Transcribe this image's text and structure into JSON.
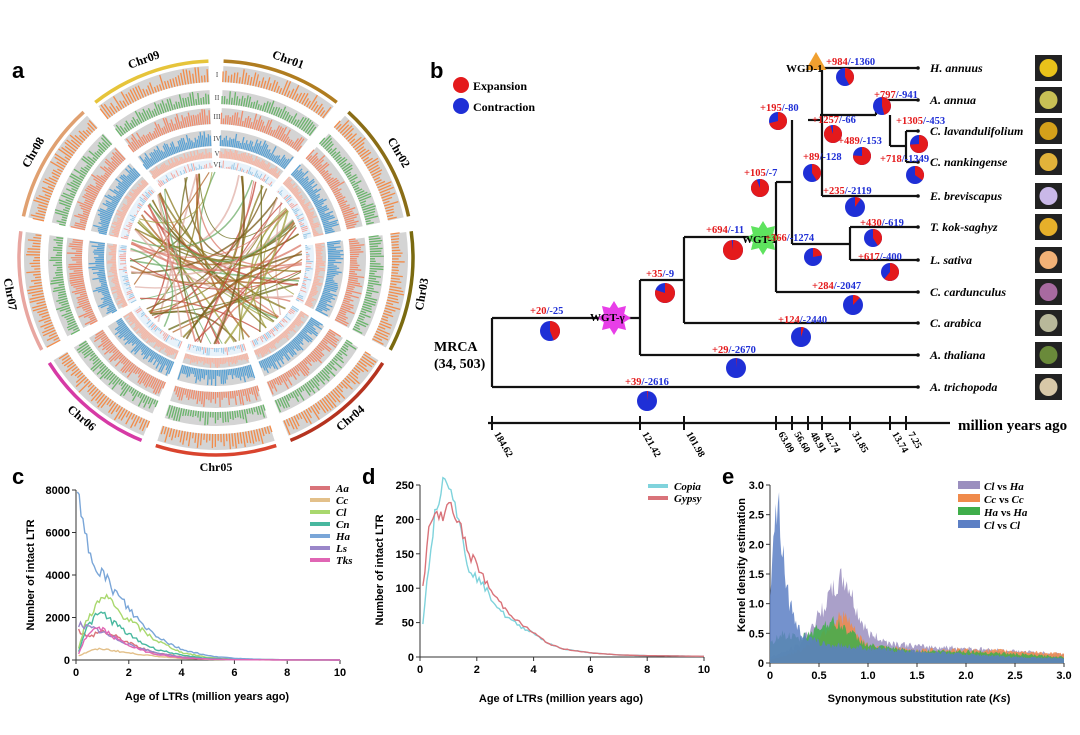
{
  "panels": {
    "a": {
      "letter": "a",
      "chromosomes": [
        "Chr01",
        "Chr02",
        "Chr03",
        "Chr04",
        "Chr05",
        "Chr06",
        "Chr07",
        "Chr08",
        "Chr09"
      ],
      "ring_labels": [
        "I",
        "II",
        "III",
        "IV",
        "V",
        "VI"
      ],
      "chrom_colors": [
        "#b07d20",
        "#8a6d16",
        "#7a6a10",
        "#b5331f",
        "#d9442e",
        "#d63aa5",
        "#e8a6a0",
        "#e0a070",
        "#e6c43a"
      ],
      "ring_colors": [
        "#f28c4a",
        "#6ab46b",
        "#f08c6c",
        "#5aa2d4",
        "#f6b7a6",
        "#9cc9e6"
      ]
    },
    "b": {
      "letter": "b",
      "legend": [
        {
          "label": "Expansion",
          "color": "#e41a1c"
        },
        {
          "label": "Contraction",
          "color": "#1f2fd6"
        }
      ],
      "root_label_line1": "MRCA",
      "root_label_line2": "(34, 503)",
      "axis_unit": "million years ago",
      "axis_ticks": [
        "184.62",
        "121.42",
        "101.98",
        "63.09",
        "56.60",
        "48.91",
        "42.74",
        "31.85",
        "13.74",
        "7.25"
      ],
      "taxa": [
        "H. annuus",
        "A. annua",
        "C. lavandulifolium",
        "C. nankingense",
        "E. breviscapus",
        "T. kok-saghyz",
        "L. sativa",
        "C. cardunculus",
        "C. arabica",
        "A. thaliana",
        "A. trichopoda"
      ],
      "events": [
        {
          "label": "WGD-1",
          "color": "#f0a030"
        },
        {
          "label": "WGT-1",
          "color": "#5ee35e"
        },
        {
          "label": "WGT-γ",
          "color": "#e83ee8"
        }
      ],
      "nodes": [
        {
          "plus": "+984",
          "minus": "-1360",
          "expansion_fraction": 0.42
        },
        {
          "plus": "+797",
          "minus": "-941",
          "expansion_fraction": 0.46
        },
        {
          "plus": "+1257",
          "minus": "-66",
          "expansion_fraction": 0.95
        },
        {
          "plus": "+1305",
          "minus": "-453",
          "expansion_fraction": 0.74
        },
        {
          "plus": "+489",
          "minus": "-153",
          "expansion_fraction": 0.76
        },
        {
          "plus": "+718",
          "minus": "-1349",
          "expansion_fraction": 0.35
        },
        {
          "plus": "+195",
          "minus": "-80",
          "expansion_fraction": 0.71
        },
        {
          "plus": "+89",
          "minus": "-128",
          "expansion_fraction": 0.41
        },
        {
          "plus": "+105",
          "minus": "-7",
          "expansion_fraction": 0.94
        },
        {
          "plus": "+235",
          "minus": "-2119",
          "expansion_fraction": 0.1
        },
        {
          "plus": "+430",
          "minus": "-619",
          "expansion_fraction": 0.41
        },
        {
          "plus": "+694",
          "minus": "-11",
          "expansion_fraction": 0.98
        },
        {
          "plus": "+366",
          "minus": "-1274",
          "expansion_fraction": 0.22
        },
        {
          "plus": "+617",
          "minus": "-400",
          "expansion_fraction": 0.61
        },
        {
          "plus": "+284",
          "minus": "-2047",
          "expansion_fraction": 0.12
        },
        {
          "plus": "+35",
          "minus": "-9",
          "expansion_fraction": 0.8
        },
        {
          "plus": "+124",
          "minus": "-2440",
          "expansion_fraction": 0.05
        },
        {
          "plus": "+20",
          "minus": "-25",
          "expansion_fraction": 0.44
        },
        {
          "plus": "+29",
          "minus": "-2670",
          "expansion_fraction": 0.01
        },
        {
          "plus": "+39",
          "minus": "-2616",
          "expansion_fraction": 0.015
        }
      ]
    },
    "c": {
      "letter": "c",
      "ylabel": "Number of intact LTR",
      "xlabel": "Age of LTRs (million years ago)"
    },
    "d": {
      "letter": "d",
      "ylabel": "Number of intact LTR",
      "xlabel": "Age of LTRs (million years ago)"
    },
    "e": {
      "letter": "e",
      "ylabel": "Kernel density estimation",
      "xlabel_main": "Synonymous substitution rate (",
      "xlabel_italic": "Ks",
      "xlabel_end": ")"
    }
  },
  "chart_data": [
    {
      "type": "line",
      "panel": "c",
      "xlabel": "Age of LTRs (million years ago)",
      "ylabel": "Number of intact LTR",
      "xlim": [
        0,
        10
      ],
      "ylim": [
        0,
        8000
      ],
      "xticks": [
        0,
        2,
        4,
        6,
        8,
        10
      ],
      "yticks": [
        0,
        2000,
        4000,
        6000,
        8000
      ],
      "legend_position": "top-right",
      "series": [
        {
          "name": "Aa",
          "color": "#d9737a",
          "x": [
            0.1,
            0.3,
            0.5,
            0.8,
            1.0,
            1.5,
            2.0,
            2.5,
            3.0,
            4.0,
            5.0,
            6.0,
            8.0,
            10.0
          ],
          "y": [
            1400,
            1200,
            1050,
            1300,
            1350,
            1100,
            800,
            550,
            350,
            150,
            60,
            20,
            5,
            0
          ]
        },
        {
          "name": "Cc",
          "color": "#e3c08a",
          "x": [
            0.1,
            0.3,
            0.5,
            0.8,
            1.0,
            1.5,
            2.0,
            3.0,
            4.0,
            5.0,
            6.0,
            8.0,
            10.0
          ],
          "y": [
            200,
            300,
            420,
            500,
            520,
            430,
            330,
            180,
            80,
            30,
            10,
            3,
            0
          ]
        },
        {
          "name": "Cl",
          "color": "#a9d86e",
          "x": [
            0.1,
            0.3,
            0.5,
            0.8,
            1.0,
            1.3,
            1.6,
            2.0,
            2.5,
            3.0,
            4.0,
            5.0,
            6.0,
            8.0,
            10.0
          ],
          "y": [
            500,
            1500,
            2100,
            2600,
            2900,
            2800,
            2300,
            1900,
            1400,
            950,
            350,
            120,
            40,
            10,
            0
          ]
        },
        {
          "name": "Cn",
          "color": "#48b89f",
          "x": [
            0.1,
            0.3,
            0.5,
            0.8,
            1.0,
            1.3,
            1.6,
            2.0,
            2.5,
            3.0,
            4.0,
            5.0,
            6.0,
            8.0,
            10.0
          ],
          "y": [
            400,
            1200,
            1700,
            2100,
            2200,
            1900,
            1600,
            1200,
            800,
            520,
            220,
            80,
            30,
            5,
            0
          ]
        },
        {
          "name": "Ha",
          "color": "#7aa6d8",
          "x": [
            0.05,
            0.2,
            0.4,
            0.6,
            0.8,
            1.0,
            1.3,
            1.6,
            2.0,
            2.5,
            3.0,
            3.5,
            4.0,
            5.0,
            6.0,
            7.0,
            8.0,
            10.0
          ],
          "y": [
            7800,
            6600,
            5600,
            4900,
            4500,
            4100,
            3500,
            3000,
            2400,
            1700,
            1200,
            800,
            500,
            200,
            80,
            30,
            10,
            0
          ]
        },
        {
          "name": "Ls",
          "color": "#9a86c9",
          "x": [
            0.1,
            0.3,
            0.5,
            0.8,
            1.0,
            1.3,
            1.6,
            2.0,
            2.5,
            3.0,
            4.0,
            5.0,
            6.0,
            8.0,
            10.0
          ],
          "y": [
            1700,
            1600,
            1500,
            1400,
            1300,
            1100,
            950,
            750,
            520,
            350,
            130,
            50,
            15,
            3,
            0
          ]
        },
        {
          "name": "Tks",
          "color": "#e066b4",
          "x": [
            0.1,
            0.3,
            0.5,
            0.8,
            1.0,
            1.3,
            1.6,
            2.0,
            2.5,
            3.0,
            4.0,
            5.0,
            6.0,
            8.0,
            10.0
          ],
          "y": [
            300,
            900,
            1300,
            1500,
            1450,
            1200,
            950,
            700,
            450,
            280,
            100,
            40,
            15,
            3,
            0
          ]
        }
      ]
    },
    {
      "type": "line",
      "panel": "d",
      "xlabel": "Age of LTRs (million years ago)",
      "ylabel": "Number of intact LTR",
      "xlim": [
        0,
        10
      ],
      "ylim": [
        0,
        250
      ],
      "xticks": [
        0,
        2,
        4,
        6,
        8,
        10
      ],
      "yticks": [
        0,
        50,
        100,
        150,
        200,
        250
      ],
      "legend_position": "top-right",
      "series": [
        {
          "name": "Copia",
          "color": "#7fd3dc",
          "x": [
            0.1,
            0.3,
            0.5,
            0.7,
            0.9,
            1.1,
            1.3,
            1.5,
            1.7,
            2.0,
            2.3,
            2.6,
            3.0,
            3.5,
            4.0,
            4.5,
            5.0,
            6.0,
            7.0,
            8.0,
            10.0
          ],
          "y": [
            50,
            130,
            200,
            240,
            268,
            250,
            210,
            170,
            130,
            115,
            100,
            80,
            60,
            45,
            35,
            20,
            12,
            6,
            3,
            2,
            1
          ]
        },
        {
          "name": "Gypsy",
          "color": "#d9737a",
          "x": [
            0.1,
            0.3,
            0.5,
            0.7,
            0.9,
            1.1,
            1.3,
            1.5,
            1.7,
            2.0,
            2.3,
            2.6,
            3.0,
            3.5,
            4.0,
            4.5,
            5.0,
            6.0,
            7.0,
            8.0,
            10.0
          ],
          "y": [
            100,
            180,
            210,
            200,
            215,
            225,
            200,
            180,
            150,
            135,
            110,
            90,
            70,
            50,
            35,
            20,
            12,
            6,
            3,
            2,
            1
          ]
        }
      ]
    },
    {
      "type": "area",
      "panel": "e",
      "xlabel": "Synonymous substitution rate (Ks)",
      "ylabel": "Kernel density estimation",
      "xlim": [
        0,
        3.0
      ],
      "ylim": [
        0,
        3.0
      ],
      "xticks": [
        0,
        0.5,
        1.0,
        1.5,
        2.0,
        2.5,
        3.0
      ],
      "yticks": [
        0,
        0.5,
        1.0,
        1.5,
        2.0,
        2.5,
        3.0
      ],
      "legend_position": "top-right",
      "series": [
        {
          "name": "Cl vs Ha",
          "color": "#9b8fbf",
          "x": [
            0,
            0.1,
            0.3,
            0.5,
            0.6,
            0.7,
            0.75,
            0.8,
            0.9,
            1.0,
            1.2,
            1.5,
            2.0,
            2.5,
            3.0
          ],
          "y": [
            0.1,
            0.15,
            0.3,
            0.8,
            1.1,
            1.35,
            1.4,
            1.3,
            0.8,
            0.5,
            0.35,
            0.28,
            0.25,
            0.2,
            0.15
          ]
        },
        {
          "name": "Cc vs Cc",
          "color": "#f08a4b",
          "x": [
            0,
            0.1,
            0.3,
            0.5,
            0.6,
            0.7,
            0.75,
            0.8,
            0.9,
            1.0,
            1.2,
            1.5,
            2.0,
            2.5,
            3.0
          ],
          "y": [
            0.05,
            0.1,
            0.2,
            0.45,
            0.6,
            0.75,
            0.8,
            0.7,
            0.45,
            0.3,
            0.25,
            0.22,
            0.22,
            0.2,
            0.15
          ]
        },
        {
          "name": "Ha vs Ha",
          "color": "#3fae4a",
          "x": [
            0,
            0.1,
            0.3,
            0.5,
            0.6,
            0.7,
            0.8,
            0.9,
            1.0,
            1.2,
            1.5,
            2.0,
            2.5,
            3.0
          ],
          "y": [
            0.3,
            0.5,
            0.4,
            0.6,
            0.7,
            0.65,
            0.55,
            0.4,
            0.3,
            0.25,
            0.2,
            0.2,
            0.15,
            0.1
          ]
        },
        {
          "name": "Cl vs Cl",
          "color": "#5c7fc4",
          "x": [
            0,
            0.03,
            0.06,
            0.08,
            0.1,
            0.15,
            0.2,
            0.3,
            0.4,
            0.5,
            0.6,
            0.7,
            0.8,
            1.0,
            1.2,
            1.5,
            2.0,
            2.5,
            3.0
          ],
          "y": [
            1.2,
            2.2,
            2.6,
            2.75,
            2.5,
            1.6,
            1.0,
            0.55,
            0.4,
            0.35,
            0.3,
            0.3,
            0.28,
            0.25,
            0.22,
            0.2,
            0.15,
            0.1,
            0.08
          ]
        }
      ]
    }
  ]
}
